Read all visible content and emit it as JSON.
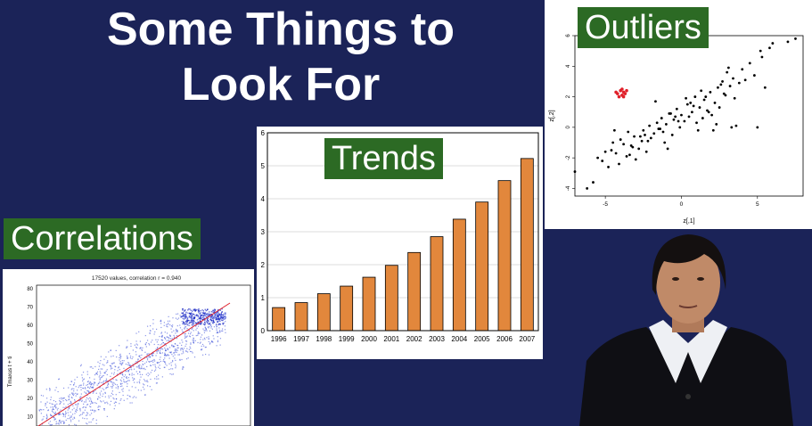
{
  "slide": {
    "title_line1": "Some Things to",
    "title_line2": "Look For"
  },
  "labels": {
    "trends": "Trends",
    "outliers": "Outliers",
    "correlations": "Correlations"
  },
  "colors": {
    "background": "#1b2358",
    "label_bg": "#2c6a24",
    "bar_fill": "#e2873c",
    "outlier_red": "#e0202a",
    "scatter_blue": "#2a3fd6"
  },
  "chart_data": [
    {
      "type": "bar",
      "categories": [
        "1996",
        "1997",
        "1998",
        "1999",
        "2000",
        "2001",
        "2002",
        "2003",
        "2004",
        "2005",
        "2006",
        "2007"
      ],
      "values": [
        0.7,
        0.85,
        1.12,
        1.35,
        1.62,
        1.98,
        2.37,
        2.85,
        3.38,
        3.9,
        4.55,
        5.22
      ],
      "ylim": [
        0,
        6
      ],
      "yticks": [
        "0",
        "1",
        "2",
        "3",
        "4",
        "5",
        "6"
      ],
      "grid": "horizontal",
      "title": "",
      "xlabel": "",
      "ylabel": ""
    },
    {
      "type": "scatter",
      "xlabel": "z[,1]",
      "ylabel": "z[,2]",
      "xticks": [
        "-5",
        "0",
        "5"
      ],
      "yticks": [
        "-4",
        "-2",
        "0",
        "2",
        "4",
        "6"
      ],
      "xlim": [
        -7,
        8
      ],
      "ylim": [
        -4.5,
        6
      ],
      "series": [
        {
          "color": "#000000",
          "x": [
            -7,
            -6.2,
            -5.8,
            -5.5,
            -5.2,
            -5.0,
            -4.8,
            -4.6,
            -4.5,
            -4.3,
            -4.1,
            -4.0,
            -3.8,
            -3.6,
            -3.5,
            -3.3,
            -3.1,
            -3.0,
            -2.8,
            -2.6,
            -2.5,
            -2.3,
            -2.1,
            -2.0,
            -1.8,
            -1.6,
            -1.5,
            -1.3,
            -1.1,
            -1.0,
            -0.8,
            -0.6,
            -0.5,
            -0.3,
            -0.1,
            0.0,
            0.2,
            0.4,
            0.5,
            0.7,
            0.9,
            1.0,
            1.2,
            1.4,
            1.5,
            1.7,
            1.9,
            2.0,
            2.2,
            2.4,
            2.5,
            2.7,
            2.9,
            3.0,
            3.2,
            3.4,
            3.5,
            4.0,
            4.5,
            5.0,
            5.2,
            5.5,
            6.0,
            7.0,
            7.5,
            -3.2,
            -2.2,
            -1.2,
            -0.2,
            0.8,
            1.8,
            2.8,
            3.8,
            4.8,
            -4.4,
            -1.7,
            0.3,
            1.3,
            2.3,
            3.3,
            5.3,
            -0.7,
            -2.7,
            3.1,
            2.6,
            1.6,
            0.6,
            -0.4,
            -1.4,
            -2.4,
            -3.4,
            4.2,
            5.8,
            3.6,
            2.1,
            -0.9,
            1.1
          ],
          "y": [
            -2.9,
            -4.0,
            -3.6,
            -2.0,
            -2.2,
            -1.6,
            -2.6,
            -1.5,
            -1.0,
            -1.7,
            -2.4,
            -0.8,
            -1.1,
            -1.9,
            -0.3,
            -1.2,
            -0.6,
            -2.1,
            -1.4,
            -0.9,
            -0.2,
            -1.6,
            0.1,
            -0.7,
            -0.4,
            0.3,
            -0.1,
            0.6,
            -1.0,
            0.2,
            0.9,
            -0.5,
            0.5,
            1.2,
            0.0,
            0.8,
            0.4,
            1.5,
            0.7,
            1.0,
            2.0,
            0.3,
            1.3,
            0.6,
            1.8,
            1.1,
            2.3,
            0.8,
            1.6,
            2.6,
            1.3,
            3.0,
            2.1,
            3.6,
            2.7,
            3.2,
            1.9,
            3.8,
            4.2,
            0.0,
            5.0,
            2.6,
            5.5,
            5.6,
            5.8,
            -1.3,
            -0.9,
            -0.3,
            0.4,
            1.4,
            1.0,
            2.2,
            2.9,
            3.4,
            -0.2,
            1.7,
            1.9,
            2.4,
            0.2,
            0.0,
            4.6,
            0.9,
            -0.6,
            3.9,
            2.8,
            2.0,
            1.6,
            0.7,
            -0.1,
            -0.5,
            -1.8,
            3.1,
            5.2,
            0.1,
            -0.2,
            -1.4,
            -0.2
          ]
        },
        {
          "color": "#e0202a",
          "x": [
            -4.2,
            -4.0,
            -3.9,
            -3.8,
            -4.1,
            -3.7,
            -3.9,
            -4.3,
            -3.6,
            -3.8
          ],
          "y": [
            2.2,
            2.4,
            2.1,
            2.3,
            2.0,
            2.2,
            2.5,
            2.3,
            2.4,
            2.0
          ]
        }
      ]
    },
    {
      "type": "scatter",
      "title": "17520 values, correlation r = 0.940",
      "ylabel": "Tmaxus t + ti",
      "yticks": [
        "10",
        "20",
        "30",
        "40",
        "50",
        "60",
        "70",
        "80"
      ],
      "ylim": [
        5,
        82
      ]
    }
  ]
}
